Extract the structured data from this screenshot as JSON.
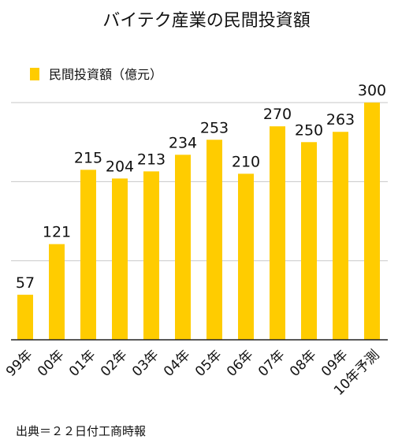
{
  "chart_data": {
    "type": "bar",
    "title": "バイテク産業の民間投資額",
    "categories": [
      "99年",
      "00年",
      "01年",
      "02年",
      "03年",
      "04年",
      "05年",
      "06年",
      "07年",
      "08年",
      "09年",
      "10年予測"
    ],
    "series": [
      {
        "name": "民間投資額（億元）",
        "values": [
          57,
          121,
          215,
          204,
          213,
          234,
          253,
          210,
          270,
          250,
          263,
          300
        ],
        "color": "#FFCC00"
      }
    ],
    "ylim": [
      0,
      350
    ],
    "gridlines": [
      100,
      200,
      300
    ],
    "grid": true,
    "legend_position": "top-left",
    "source": "出典＝２２日付工商時報"
  }
}
